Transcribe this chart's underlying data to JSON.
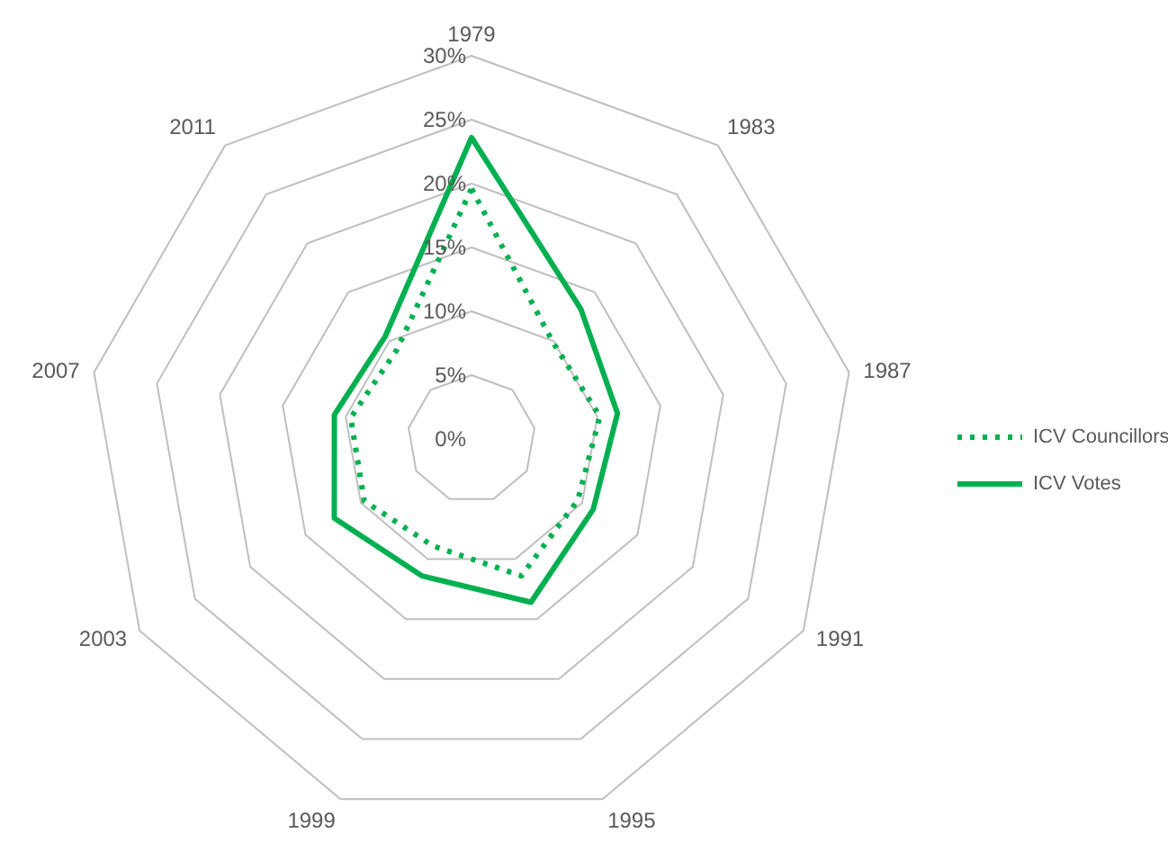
{
  "chart_data": {
    "type": "radar",
    "categories": [
      "1979",
      "1983",
      "1987",
      "1991",
      "1995",
      "1999",
      "2003",
      "2007",
      "2011"
    ],
    "series": [
      {
        "name": "ICV Councillors",
        "color": "#00b050",
        "line_style": "dotted",
        "values": [
          19.6,
          9.9,
          10.2,
          9.6,
          11.4,
          8.9,
          9.7,
          9.6,
          9.1
        ]
      },
      {
        "name": "ICV Votes",
        "color": "#00b050",
        "line_style": "solid",
        "values": [
          23.6,
          13.3,
          11.6,
          11.0,
          13.6,
          11.4,
          12.4,
          10.9,
          10.5
        ]
      }
    ],
    "ylim": [
      0,
      30
    ],
    "yticks": [
      {
        "value": 0,
        "label": "0%"
      },
      {
        "value": 5,
        "label": "5%"
      },
      {
        "value": 10,
        "label": "10%"
      },
      {
        "value": 15,
        "label": "15%"
      },
      {
        "value": 20,
        "label": "20%"
      },
      {
        "value": 25,
        "label": "25%"
      },
      {
        "value": 30,
        "label": "30%"
      }
    ],
    "grid": true,
    "legend": "right",
    "marker": "none"
  }
}
